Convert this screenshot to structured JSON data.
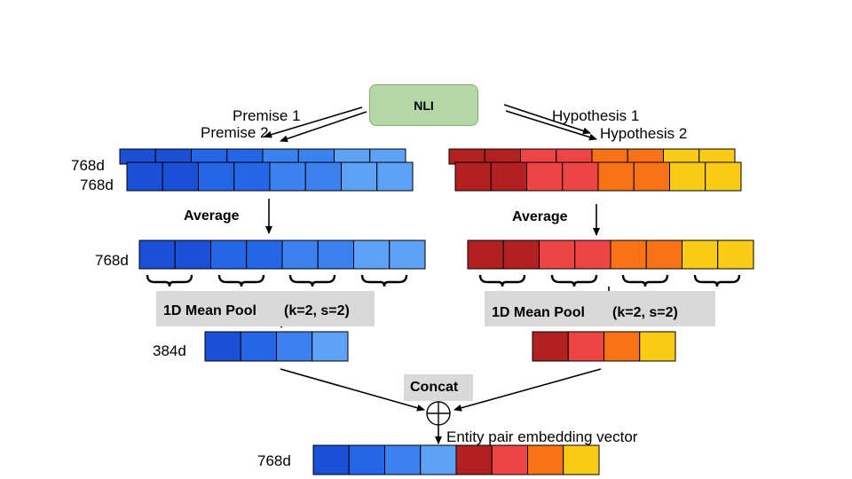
{
  "nli": "NLI",
  "labels": {
    "premise1": "Premise 1",
    "premise2": "Premise 2",
    "hypothesis1": "Hypothesis 1",
    "hypothesis2": "Hypothesis 2",
    "dim_a1": "768d",
    "dim_a2": "768d",
    "dim_b": "768d",
    "dim_c": "384d",
    "dim_d": "768d",
    "average_left": "Average",
    "average_right": "Average",
    "pool_left": "1D Mean Pool",
    "pool_left_params": "(k=2, s=2)",
    "pool_right": "1D Mean Pool",
    "pool_right_params": "(k=2, s=2)",
    "concat": "Concat",
    "entity": "Entity pair embedding vector"
  },
  "colors": {
    "blue": [
      "#1a4fd6",
      "#2566e6",
      "#3b82f0",
      "#5ea2f7"
    ],
    "red": [
      "#b22020",
      "#ee4444",
      "#f97316",
      "#facc15"
    ]
  }
}
